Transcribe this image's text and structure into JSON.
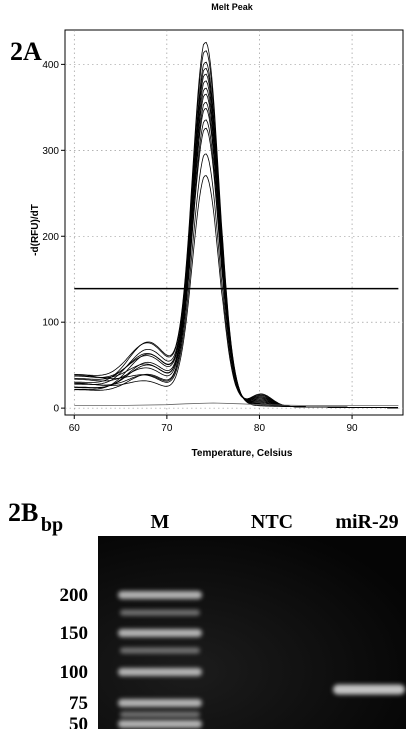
{
  "figure": {
    "panel_a_label": "2A",
    "panel_b_label": "2B"
  },
  "chart_data": [
    {
      "type": "line",
      "title": "Melt Peak",
      "xlabel": "Temperature, Celsius",
      "ylabel": "-d(RFU)/dT",
      "xlim": [
        59,
        95.5
      ],
      "ylim": [
        -8,
        440
      ],
      "xticks": [
        60,
        70,
        80,
        90
      ],
      "yticks": [
        0,
        100,
        200,
        300,
        400
      ],
      "grid": true,
      "threshold": 139,
      "peak_x": 74.2,
      "series_peaks": [
        425,
        415,
        402,
        395,
        388,
        380,
        372,
        365,
        355,
        348,
        335,
        325,
        295,
        270
      ],
      "ntc_series": {
        "x": [
          60,
          65,
          70,
          72,
          75,
          78,
          80,
          85,
          90,
          95
        ],
        "y": [
          3,
          3,
          4,
          5,
          6,
          5,
          4,
          3,
          3,
          3
        ]
      }
    },
    {
      "type": "gel",
      "lanes": [
        "M",
        "NTC",
        "miR-29"
      ],
      "axis_unit": "bp",
      "ladder_sizes": [
        200,
        150,
        100,
        75,
        50
      ],
      "ladder_labels": [
        "200",
        "150",
        "100",
        "75",
        "50"
      ],
      "sample_band": {
        "lane": "miR-29",
        "size_bp": 85
      }
    }
  ]
}
